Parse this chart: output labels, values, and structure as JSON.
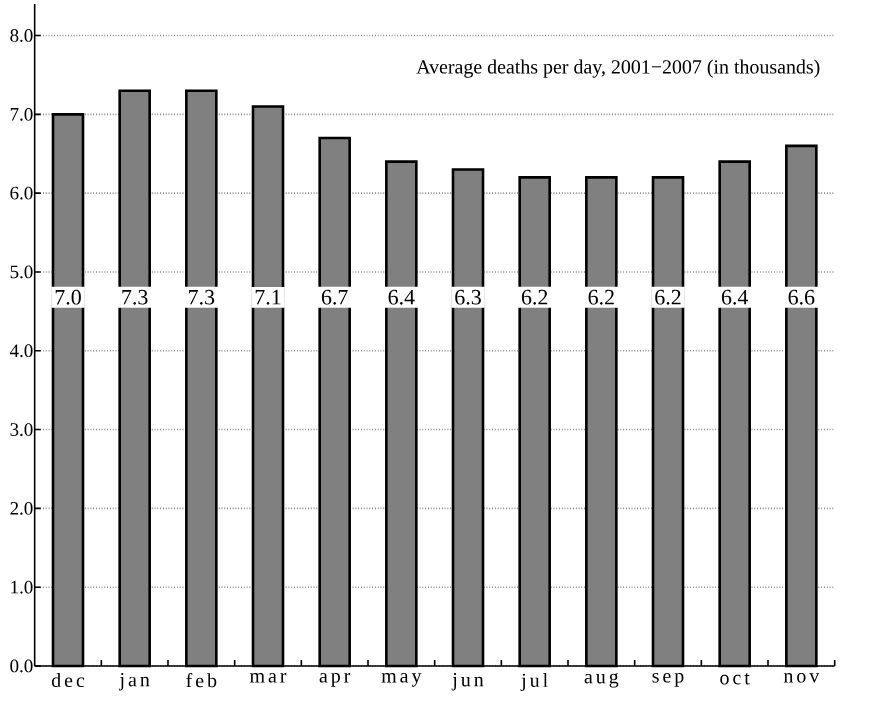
{
  "chart_data": {
    "type": "bar",
    "title": "Average deaths per day, 2001−2007 (in thousands)",
    "categories": [
      "dec",
      "jan",
      "feb",
      "mar",
      "apr",
      "may",
      "jun",
      "jul",
      "aug",
      "sep",
      "oct",
      "nov"
    ],
    "values": [
      7.0,
      7.3,
      7.3,
      7.1,
      6.7,
      6.4,
      6.3,
      6.2,
      6.2,
      6.2,
      6.4,
      6.6
    ],
    "value_labels": [
      "7.0",
      "7.3",
      "7.3",
      "7.1",
      "6.7",
      "6.4",
      "6.3",
      "6.2",
      "6.2",
      "6.2",
      "6.4",
      "6.6"
    ],
    "color": "#808080",
    "ylim": [
      0,
      8.4
    ],
    "yticks": [
      {
        "value": 0,
        "label": "0.0"
      },
      {
        "value": 1,
        "label": "1.0"
      },
      {
        "value": 2,
        "label": "2.0"
      },
      {
        "value": 3,
        "label": "3.0"
      },
      {
        "value": 4,
        "label": "4.0"
      },
      {
        "value": 5,
        "label": "5.0"
      },
      {
        "value": 6,
        "label": "6.0"
      },
      {
        "value": 7,
        "label": "7.0"
      },
      {
        "value": 8,
        "label": "8.0"
      }
    ],
    "grid": "y"
  }
}
